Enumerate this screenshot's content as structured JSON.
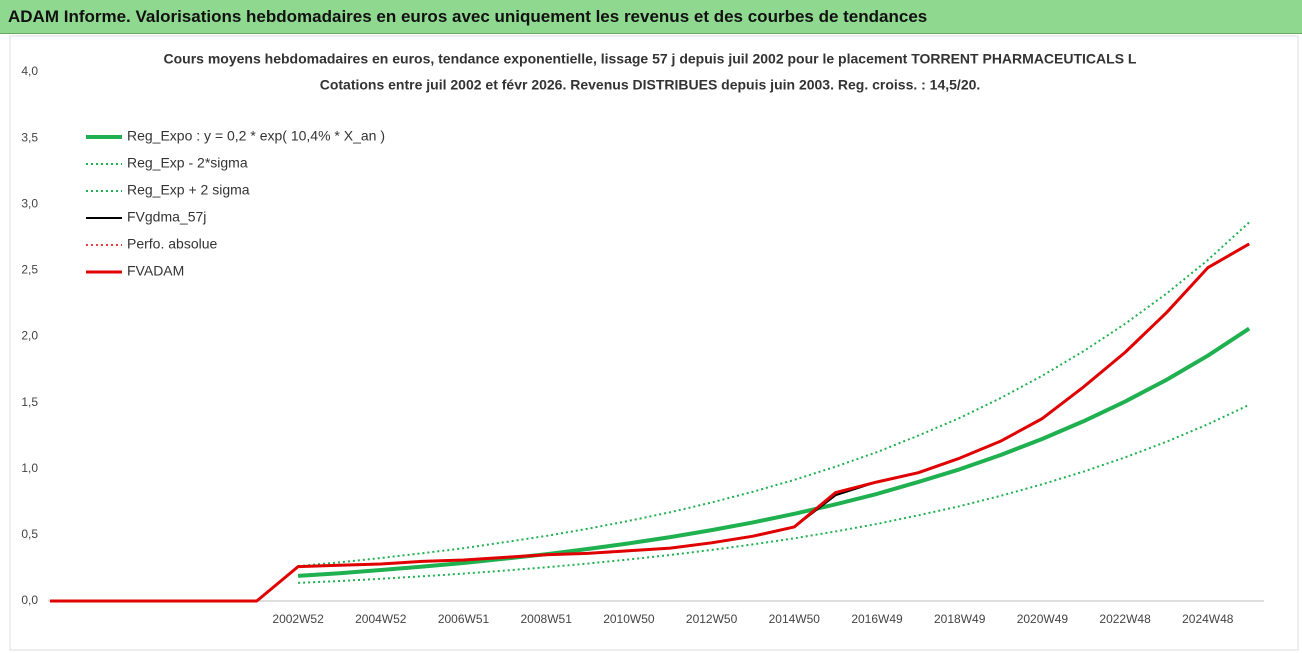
{
  "header": {
    "title": "ADAM Informe. Valorisations hebdomadaires en euros avec uniquement les revenus et des courbes de tendances"
  },
  "chart_data": {
    "type": "line",
    "title": "Cours moyens hebdomadaires en euros, tendance exponentielle, lissage 57 j depuis juil 2002 pour le placement TORRENT PHARMACEUTICALS L",
    "subtitle": "Cotations entre juil 2002 et févr 2026. Revenus DISTRIBUES depuis juin 2003. Reg. croiss. : 14,5/20.",
    "categories": [
      null,
      null,
      null,
      null,
      null,
      null,
      "2002W52",
      null,
      "2004W52",
      null,
      "2006W51",
      null,
      "2008W51",
      null,
      "2010W50",
      null,
      "2012W50",
      null,
      "2014W50",
      null,
      "2016W49",
      null,
      "2018W49",
      null,
      "2020W49",
      null,
      "2022W48",
      null,
      "2024W48",
      null
    ],
    "ylim": [
      0,
      4
    ],
    "yticks": [
      {
        "value": 0,
        "label": "0,0"
      },
      {
        "value": 0.5,
        "label": "0,5"
      },
      {
        "value": 1,
        "label": "1,0"
      },
      {
        "value": 1.5,
        "label": "1,5"
      },
      {
        "value": 2,
        "label": "2,0"
      },
      {
        "value": 2.5,
        "label": "2,5"
      },
      {
        "value": 3,
        "label": "3,0"
      },
      {
        "value": 3.5,
        "label": "3,5"
      },
      {
        "value": 4,
        "label": "4,0"
      }
    ],
    "grid": false,
    "legend": "top-left",
    "series": [
      {
        "name": "Reg_Expo : y = 0,2 * exp( 10,4% *  X_an )",
        "color": "#1fb050",
        "width": 4,
        "dash": false,
        "values": [
          null,
          null,
          null,
          null,
          null,
          null,
          0.19,
          0.21,
          0.234,
          0.26,
          0.287,
          0.32,
          0.354,
          0.393,
          0.436,
          0.483,
          0.536,
          0.594,
          0.659,
          0.731,
          0.81,
          0.9,
          0.996,
          1.105,
          1.226,
          1.36,
          1.508,
          1.672,
          1.855,
          2.06
        ]
      },
      {
        "name": "Reg_Exp - 2*sigma",
        "color": "#1fb050",
        "width": 2,
        "dash": true,
        "values": [
          null,
          null,
          null,
          null,
          null,
          null,
          0.137,
          0.151,
          0.168,
          0.187,
          0.207,
          0.23,
          0.255,
          0.283,
          0.314,
          0.348,
          0.386,
          0.428,
          0.474,
          0.526,
          0.583,
          0.648,
          0.717,
          0.796,
          0.883,
          0.979,
          1.086,
          1.204,
          1.336,
          1.483
        ]
      },
      {
        "name": "Reg_Exp + 2 sigma",
        "color": "#1fb050",
        "width": 2,
        "dash": true,
        "values": [
          null,
          null,
          null,
          null,
          null,
          null,
          0.264,
          0.292,
          0.325,
          0.361,
          0.399,
          0.445,
          0.492,
          0.546,
          0.606,
          0.671,
          0.745,
          0.826,
          0.916,
          1.016,
          1.126,
          1.251,
          1.384,
          1.536,
          1.704,
          1.89,
          2.096,
          2.324,
          2.578,
          2.863
        ]
      },
      {
        "name": "FVgdma_57j",
        "color": "#000000",
        "width": 2,
        "dash": false,
        "values": [
          0,
          0,
          0,
          0,
          0,
          0,
          0.26,
          0.27,
          0.28,
          0.3,
          0.31,
          0.33,
          0.35,
          0.36,
          0.38,
          0.4,
          0.44,
          0.49,
          0.56,
          0.8,
          0.9,
          0.97,
          1.08,
          1.21,
          1.38,
          1.62,
          1.88,
          2.18,
          2.52,
          2.7
        ]
      },
      {
        "name": "Perfo. absolue",
        "color": "#e00000",
        "width": 1.5,
        "dash": true,
        "values": [
          0,
          0,
          0,
          0,
          0,
          0,
          0.26,
          0.27,
          0.28,
          0.3,
          0.31,
          0.33,
          0.35,
          0.36,
          0.38,
          0.4,
          0.44,
          0.49,
          0.56,
          0.82,
          0.9,
          0.97,
          1.08,
          1.21,
          1.38,
          1.62,
          1.88,
          2.18,
          2.52,
          2.7
        ]
      },
      {
        "name": "FVADAM",
        "color": "#e00000",
        "width": 3,
        "dash": false,
        "values": [
          0,
          0,
          0,
          0,
          0,
          0,
          0.26,
          0.27,
          0.28,
          0.3,
          0.31,
          0.33,
          0.35,
          0.36,
          0.38,
          0.4,
          0.44,
          0.49,
          0.56,
          0.82,
          0.9,
          0.97,
          1.08,
          1.21,
          1.38,
          1.62,
          1.88,
          2.18,
          2.52,
          2.7
        ]
      }
    ]
  }
}
